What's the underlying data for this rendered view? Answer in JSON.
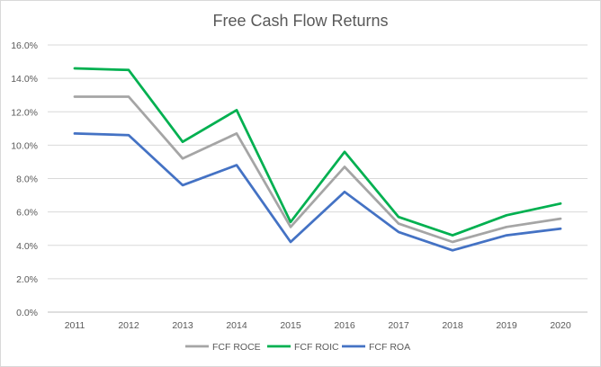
{
  "chart_data": {
    "type": "line",
    "title": "Free Cash Flow Returns",
    "xlabel": "",
    "ylabel": "",
    "categories": [
      "2011",
      "2012",
      "2013",
      "2014",
      "2015",
      "2016",
      "2017",
      "2018",
      "2019",
      "2020"
    ],
    "ylim": [
      0,
      16
    ],
    "y_ticks": [
      "0.0%",
      "2.0%",
      "4.0%",
      "6.0%",
      "8.0%",
      "10.0%",
      "12.0%",
      "14.0%",
      "16.0%"
    ],
    "y_tick_values": [
      0,
      2,
      4,
      6,
      8,
      10,
      12,
      14,
      16
    ],
    "grid": "horizontal",
    "legend_position": "bottom",
    "series": [
      {
        "name": "FCF ROCE",
        "color": "#a5a5a5",
        "values": [
          12.9,
          12.9,
          9.2,
          10.7,
          5.1,
          8.7,
          5.3,
          4.2,
          5.1,
          5.6
        ]
      },
      {
        "name": "FCF ROIC",
        "color": "#00b050",
        "values": [
          14.6,
          14.5,
          10.2,
          12.1,
          5.4,
          9.6,
          5.7,
          4.6,
          5.8,
          6.5
        ]
      },
      {
        "name": "FCF ROA",
        "color": "#4472c4",
        "values": [
          10.7,
          10.6,
          7.6,
          8.8,
          4.2,
          7.2,
          4.8,
          3.7,
          4.6,
          5.0
        ]
      }
    ]
  }
}
